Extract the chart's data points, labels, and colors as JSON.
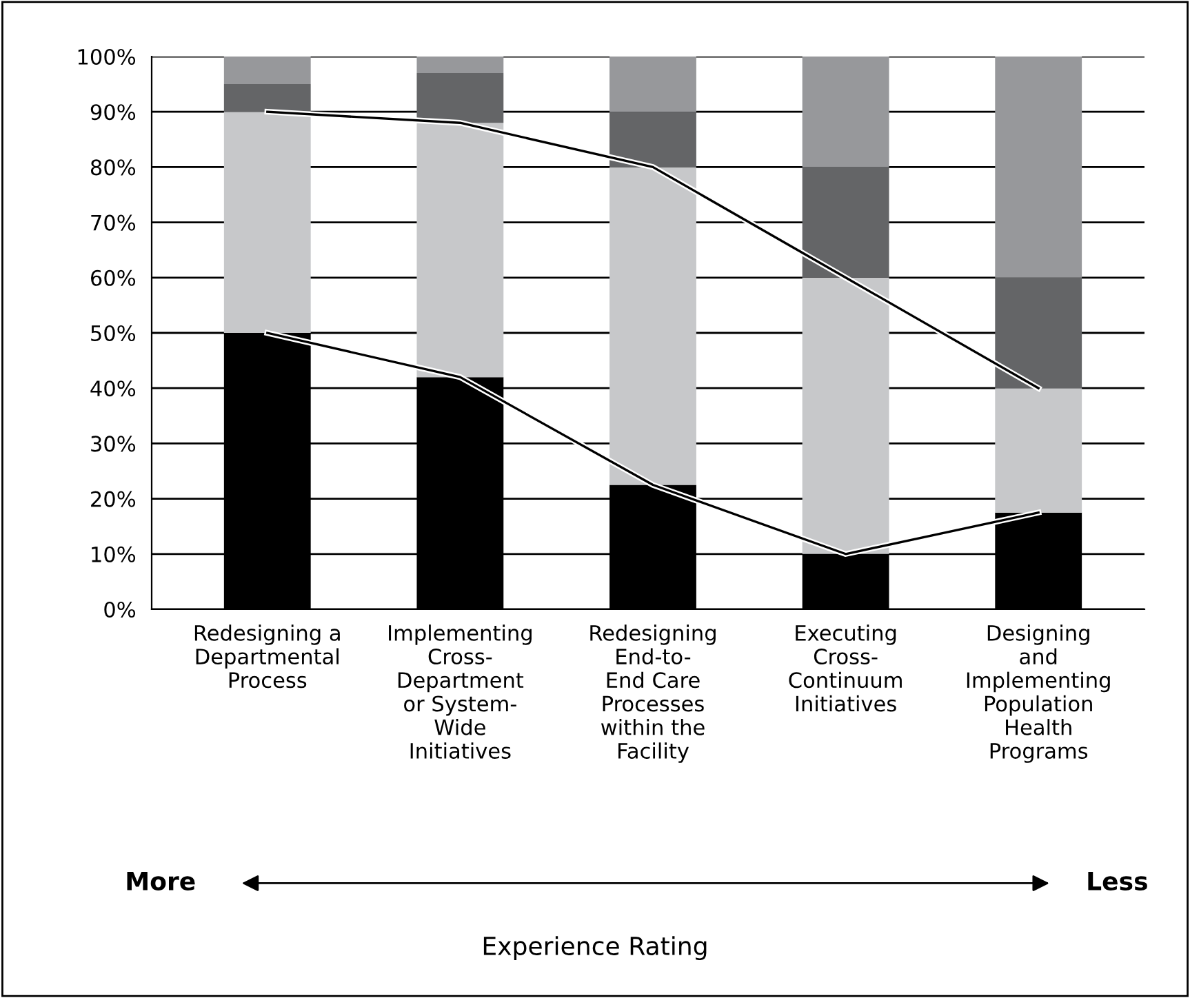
{
  "chart_data": {
    "type": "bar",
    "stacked": true,
    "categories": [
      "Redesigning a\nDepartmental\nProcess",
      "Implementing\nCross-\nDepartment\nor System-\nWide\nInitiatives",
      "Redesigning\nEnd-to-\nEnd Care\nProcesses\nwithin the\nFacility",
      "Executing\nCross-\nContinuum\nInitiatives",
      "Designing\nand\nImplementing\nPopulation\nHealth\nPrograms"
    ],
    "series": [
      {
        "color": "#000000",
        "values": [
          50,
          42,
          22.5,
          10,
          17.5
        ]
      },
      {
        "color": "#c7c8ca",
        "values": [
          40,
          46,
          57.5,
          50,
          22.5
        ]
      },
      {
        "color": "#646567",
        "values": [
          5,
          9,
          10,
          20,
          20
        ]
      },
      {
        "color": "#97989b",
        "values": [
          5,
          3,
          10,
          20,
          40
        ]
      },
      {
        "type": "line",
        "color": "#000000",
        "values": [
          90,
          88,
          80,
          60,
          40
        ]
      },
      {
        "type": "line",
        "color": "#000000",
        "values": [
          50,
          42,
          22.5,
          10,
          17.5
        ]
      }
    ],
    "ylim": [
      0,
      100
    ],
    "yticks": [
      {
        "value": 0,
        "label": "0%"
      },
      {
        "value": 10,
        "label": "10%"
      },
      {
        "value": 20,
        "label": "20%"
      },
      {
        "value": 30,
        "label": "30%"
      },
      {
        "value": 40,
        "label": "40%"
      },
      {
        "value": 50,
        "label": "50%"
      },
      {
        "value": 60,
        "label": "60%"
      },
      {
        "value": 70,
        "label": "70%"
      },
      {
        "value": 80,
        "label": "80%"
      },
      {
        "value": 90,
        "label": "90%"
      },
      {
        "value": 100,
        "label": "100%"
      }
    ],
    "grid": "y",
    "annotations": [
      "More",
      "Less",
      "Experience Rating"
    ]
  }
}
